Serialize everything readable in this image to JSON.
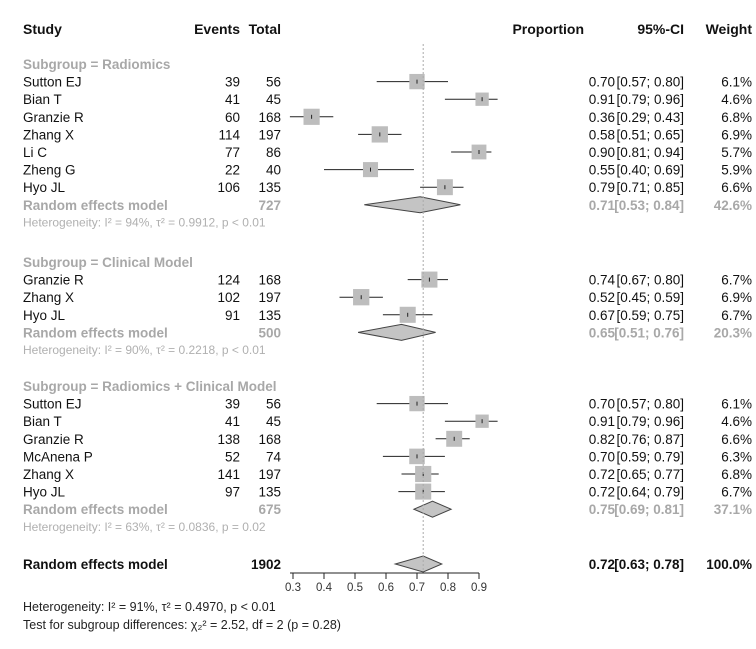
{
  "headers": {
    "study": "Study",
    "events": "Events",
    "total": "Total",
    "proportion": "Proportion",
    "ci": "95%-CI",
    "weight": "Weight"
  },
  "colors": {
    "box": "#bdbdbd",
    "diamond": "#c4c4c4",
    "subgroup_text": "#a8a8a8",
    "line": "#222222"
  },
  "chart_data": {
    "type": "forest",
    "xlim": [
      0.3,
      0.9
    ],
    "ticks": [
      "0.3",
      "0.4",
      "0.5",
      "0.6",
      "0.7",
      "0.8",
      "0.9"
    ],
    "reference_line": 0.72,
    "subgroups": [
      {
        "title": "Subgroup = Radiomics",
        "studies": [
          {
            "study": "Sutton EJ",
            "events": "39",
            "total": "56",
            "prop": 0.7,
            "lo": 0.57,
            "hi": 0.8,
            "prop_text": "0.70",
            "ci_text": "[0.57; 0.80]",
            "weight": "6.1%",
            "w": 6.1
          },
          {
            "study": "Bian T",
            "events": "41",
            "total": "45",
            "prop": 0.91,
            "lo": 0.79,
            "hi": 0.96,
            "prop_text": "0.91",
            "ci_text": "[0.79; 0.96]",
            "weight": "4.6%",
            "w": 4.6
          },
          {
            "study": "Granzie R",
            "events": "60",
            "total": "168",
            "prop": 0.36,
            "lo": 0.29,
            "hi": 0.43,
            "prop_text": "0.36",
            "ci_text": "[0.29; 0.43]",
            "weight": "6.8%",
            "w": 6.8
          },
          {
            "study": "Zhang X",
            "events": "114",
            "total": "197",
            "prop": 0.58,
            "lo": 0.51,
            "hi": 0.65,
            "prop_text": "0.58",
            "ci_text": "[0.51; 0.65]",
            "weight": "6.9%",
            "w": 6.9
          },
          {
            "study": "Li C",
            "events": "77",
            "total": "86",
            "prop": 0.9,
            "lo": 0.81,
            "hi": 0.94,
            "prop_text": "0.90",
            "ci_text": "[0.81; 0.94]",
            "weight": "5.7%",
            "w": 5.7
          },
          {
            "study": "Zheng G",
            "events": "22",
            "total": "40",
            "prop": 0.55,
            "lo": 0.4,
            "hi": 0.69,
            "prop_text": "0.55",
            "ci_text": "[0.40; 0.69]",
            "weight": "5.9%",
            "w": 5.9
          },
          {
            "study": "Hyo JL",
            "events": "106",
            "total": "135",
            "prop": 0.79,
            "lo": 0.71,
            "hi": 0.85,
            "prop_text": "0.79",
            "ci_text": "[0.71; 0.85]",
            "weight": "6.6%",
            "w": 6.6
          }
        ],
        "model": {
          "label": "Random effects model",
          "total": "727",
          "prop": 0.71,
          "lo": 0.53,
          "hi": 0.84,
          "prop_text": "0.71",
          "ci_text": "[0.53; 0.84]",
          "weight": "42.6%"
        },
        "heterogeneity": "Heterogeneity: I² = 94%, τ² = 0.9912, p < 0.01"
      },
      {
        "title": "Subgroup = Clinical Model",
        "studies": [
          {
            "study": "Granzie R",
            "events": "124",
            "total": "168",
            "prop": 0.74,
            "lo": 0.67,
            "hi": 0.8,
            "prop_text": "0.74",
            "ci_text": "[0.67; 0.80]",
            "weight": "6.7%",
            "w": 6.7
          },
          {
            "study": "Zhang X",
            "events": "102",
            "total": "197",
            "prop": 0.52,
            "lo": 0.45,
            "hi": 0.59,
            "prop_text": "0.52",
            "ci_text": "[0.45; 0.59]",
            "weight": "6.9%",
            "w": 6.9
          },
          {
            "study": "Hyo JL",
            "events": "91",
            "total": "135",
            "prop": 0.67,
            "lo": 0.59,
            "hi": 0.75,
            "prop_text": "0.67",
            "ci_text": "[0.59; 0.75]",
            "weight": "6.7%",
            "w": 6.7
          }
        ],
        "model": {
          "label": "Random effects model",
          "total": "500",
          "prop": 0.65,
          "lo": 0.51,
          "hi": 0.76,
          "prop_text": "0.65",
          "ci_text": "[0.51; 0.76]",
          "weight": "20.3%"
        },
        "heterogeneity": "Heterogeneity: I² = 90%, τ² = 0.2218, p < 0.01"
      },
      {
        "title": "Subgroup = Radiomics + Clinical Model",
        "studies": [
          {
            "study": "Sutton EJ",
            "events": "39",
            "total": "56",
            "prop": 0.7,
            "lo": 0.57,
            "hi": 0.8,
            "prop_text": "0.70",
            "ci_text": "[0.57; 0.80]",
            "weight": "6.1%",
            "w": 6.1
          },
          {
            "study": "Bian T",
            "events": "41",
            "total": "45",
            "prop": 0.91,
            "lo": 0.79,
            "hi": 0.96,
            "prop_text": "0.91",
            "ci_text": "[0.79; 0.96]",
            "weight": "4.6%",
            "w": 4.6
          },
          {
            "study": "Granzie R",
            "events": "138",
            "total": "168",
            "prop": 0.82,
            "lo": 0.76,
            "hi": 0.87,
            "prop_text": "0.82",
            "ci_text": "[0.76; 0.87]",
            "weight": "6.6%",
            "w": 6.6
          },
          {
            "study": "McAnena P",
            "events": "52",
            "total": "74",
            "prop": 0.7,
            "lo": 0.59,
            "hi": 0.79,
            "prop_text": "0.70",
            "ci_text": "[0.59; 0.79]",
            "weight": "6.3%",
            "w": 6.3
          },
          {
            "study": "Zhang X",
            "events": "141",
            "total": "197",
            "prop": 0.72,
            "lo": 0.65,
            "hi": 0.77,
            "prop_text": "0.72",
            "ci_text": "[0.65; 0.77]",
            "weight": "6.8%",
            "w": 6.8
          },
          {
            "study": "Hyo JL",
            "events": "97",
            "total": "135",
            "prop": 0.72,
            "lo": 0.64,
            "hi": 0.79,
            "prop_text": "0.72",
            "ci_text": "[0.64; 0.79]",
            "weight": "6.7%",
            "w": 6.7
          }
        ],
        "model": {
          "label": "Random effects model",
          "total": "675",
          "prop": 0.75,
          "lo": 0.69,
          "hi": 0.81,
          "prop_text": "0.75",
          "ci_text": "[0.69; 0.81]",
          "weight": "37.1%"
        },
        "heterogeneity": "Heterogeneity: I² = 63%, τ² = 0.0836, p = 0.02"
      }
    ],
    "overall": {
      "label": "Random effects model",
      "total": "1902",
      "prop": 0.72,
      "lo": 0.63,
      "hi": 0.78,
      "prop_text": "0.72",
      "ci_text": "[0.63; 0.78]",
      "weight": "100.0%"
    }
  },
  "footer": {
    "heterogeneity": "Heterogeneity: I² = 91%,  τ² = 0.4970, p < 0.01",
    "subgroup_test": "Test for subgroup differences: χ₂² = 2.52, df = 2 (p = 0.28)"
  }
}
